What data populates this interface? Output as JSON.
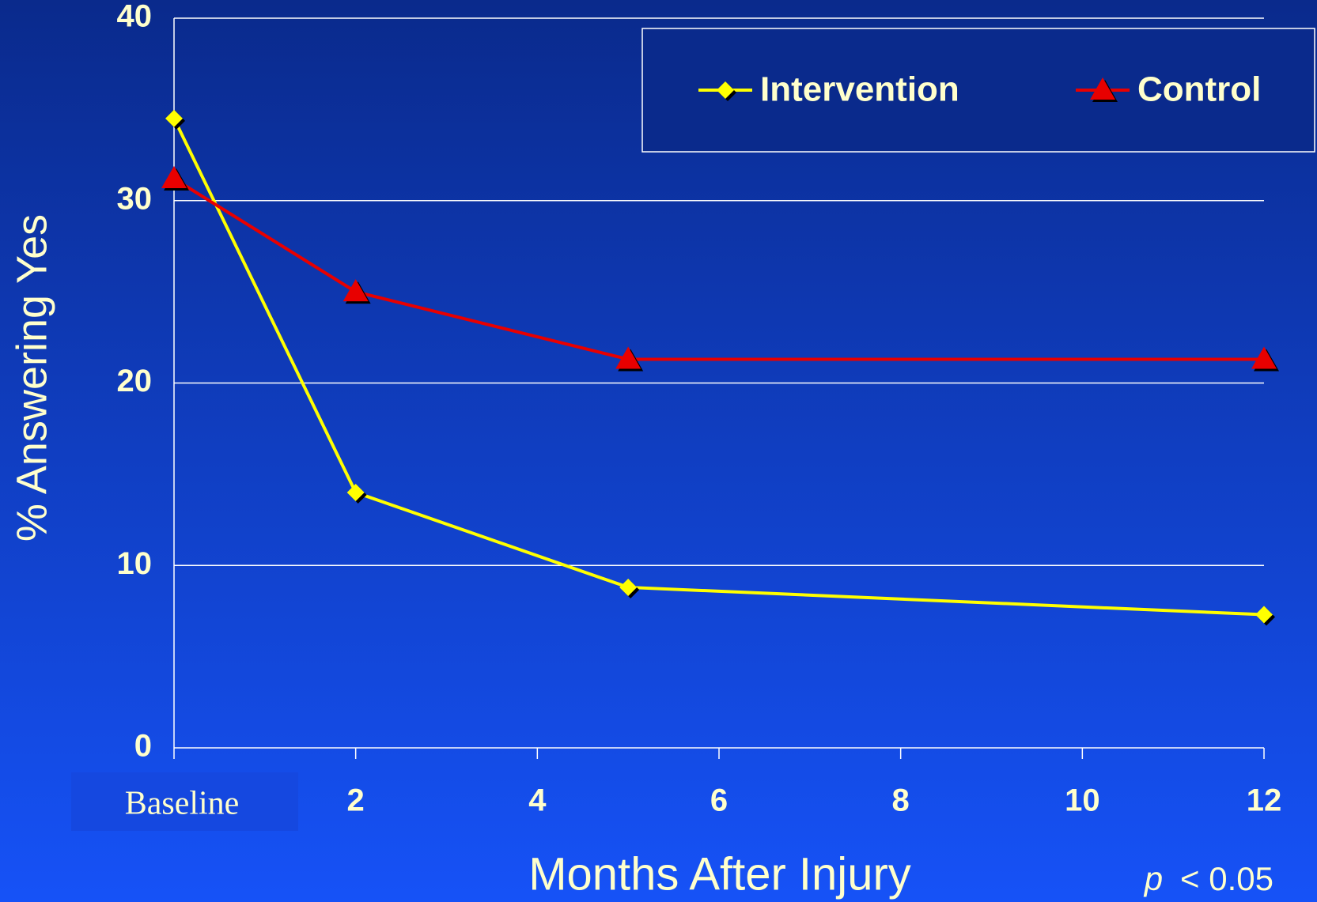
{
  "chart_data": {
    "type": "line",
    "x": [
      0,
      2,
      5,
      12
    ],
    "series": [
      {
        "name": "Intervention",
        "color": "#ffff00",
        "marker": "diamond",
        "values": [
          34.5,
          14,
          8.8,
          7.3
        ]
      },
      {
        "name": "Control",
        "color": "#e80000",
        "marker": "triangle",
        "values": [
          31.2,
          25,
          21.3,
          21.3
        ]
      }
    ],
    "xlim": [
      0,
      12
    ],
    "xticks": [
      {
        "value": 0,
        "label": "Baseline"
      },
      2,
      4,
      6,
      8,
      10,
      12
    ],
    "ylim": [
      0,
      40
    ],
    "yticks": [
      0,
      10,
      20,
      30,
      40
    ],
    "grid": true,
    "x_label": "Months After Injury",
    "y_label": "% Answering Yes",
    "annotation": [
      "p",
      "< 0.05"
    ],
    "legend": "top-right"
  }
}
